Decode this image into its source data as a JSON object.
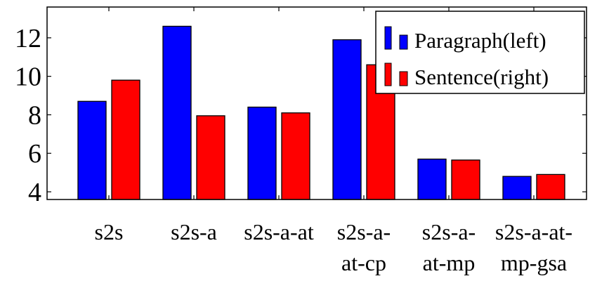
{
  "chart_data": {
    "type": "bar",
    "title": "",
    "xlabel": "",
    "ylabel": "",
    "categories": [
      [
        "s2s"
      ],
      [
        "s2s-a"
      ],
      [
        "s2s-a-at"
      ],
      [
        "s2s-a-",
        "at-cp"
      ],
      [
        "s2s-a-",
        "at-mp"
      ],
      [
        "s2s-a-at-",
        "mp-gsa"
      ]
    ],
    "series": [
      {
        "name": "Paragraph(left)",
        "color": "#0000ff",
        "values": [
          8.7,
          12.6,
          8.4,
          11.9,
          5.7,
          4.8
        ]
      },
      {
        "name": "Sentence(right)",
        "color": "#ff0000",
        "values": [
          9.8,
          7.95,
          8.1,
          10.6,
          5.65,
          4.9
        ]
      }
    ],
    "ylim": [
      3.6,
      13.6
    ],
    "yticks": [
      4,
      6,
      8,
      10,
      12
    ],
    "grid": false,
    "legend_position": "top-right"
  }
}
